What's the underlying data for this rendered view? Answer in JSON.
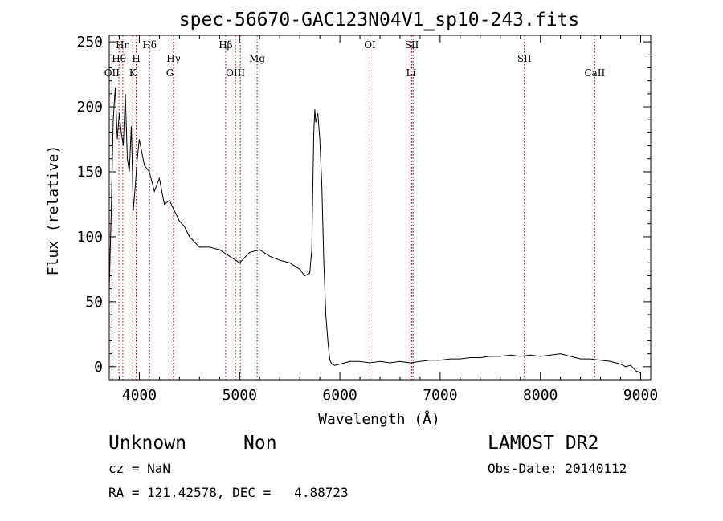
{
  "chart_data": {
    "type": "line",
    "title": "spec-56670-GAC123N04V1_sp10-243.fits",
    "xlabel": "Wavelength (Å)",
    "ylabel": "Flux (relative)",
    "xlim": [
      3700,
      9100
    ],
    "ylim": [
      -10,
      255
    ],
    "xticks": [
      4000,
      5000,
      6000,
      7000,
      8000,
      9000
    ],
    "yticks": [
      0,
      50,
      100,
      150,
      200,
      250
    ],
    "grid": false,
    "line_color": "#000000",
    "marker_color": "#990000",
    "lines": [
      {
        "label": "OII",
        "x": 3727,
        "row": 3
      },
      {
        "label": "Hθ",
        "x": 3797,
        "row": 1
      },
      {
        "label": "Hη",
        "x": 3835,
        "row": 0
      },
      {
        "label": "K",
        "x": 3934,
        "row": 3
      },
      {
        "label": "H",
        "x": 3969,
        "row": 1
      },
      {
        "label": "Hδ",
        "x": 4102,
        "row": 0
      },
      {
        "label": "G",
        "x": 4305,
        "row": 3
      },
      {
        "label": "Hγ",
        "x": 4341,
        "row": 1
      },
      {
        "label": "Hβ",
        "x": 4861,
        "row": 0
      },
      {
        "label": "OIII",
        "x": 4959,
        "row": 3
      },
      {
        "label": "",
        "x": 5007,
        "row": 3
      },
      {
        "label": "Mg",
        "x": 5175,
        "row": 1
      },
      {
        "label": "OI",
        "x": 6300,
        "row": 0
      },
      {
        "label": "Li",
        "x": 6708,
        "row": 3
      },
      {
        "label": "SII",
        "x": 6717,
        "row": 0
      },
      {
        "label": "",
        "x": 6731,
        "row": 0
      },
      {
        "label": "SII",
        "x": 7840,
        "row": 1
      },
      {
        "label": "CaII",
        "x": 8542,
        "row": 3
      }
    ],
    "series": [
      {
        "x": [
          3700,
          3720,
          3740,
          3760,
          3780,
          3800,
          3820,
          3840,
          3860,
          3880,
          3900,
          3920,
          3940,
          3960,
          3980,
          4000,
          4050,
          4100,
          4150,
          4200,
          4250,
          4300,
          4350,
          4400,
          4450,
          4500,
          4600,
          4700,
          4800,
          4900,
          5000,
          5100,
          5200,
          5300,
          5400,
          5500,
          5600,
          5650,
          5700,
          5720,
          5740,
          5750,
          5760,
          5780,
          5800,
          5820,
          5840,
          5860,
          5880,
          5900,
          5920,
          5950,
          6000,
          6100,
          6200,
          6300,
          6400,
          6500,
          6600,
          6700,
          6800,
          6900,
          7000,
          7100,
          7200,
          7300,
          7400,
          7500,
          7600,
          7700,
          7800,
          7900,
          8000,
          8100,
          8200,
          8300,
          8400,
          8500,
          8600,
          8700,
          8800,
          8850,
          8900,
          8950,
          9000
        ],
        "y": [
          60,
          120,
          190,
          215,
          175,
          195,
          180,
          170,
          210,
          160,
          150,
          185,
          120,
          140,
          160,
          175,
          155,
          150,
          135,
          145,
          125,
          128,
          120,
          112,
          108,
          100,
          92,
          92,
          90,
          85,
          80,
          88,
          90,
          85,
          82,
          80,
          75,
          70,
          72,
          90,
          180,
          198,
          188,
          195,
          175,
          140,
          80,
          40,
          20,
          5,
          2,
          1,
          2,
          4,
          4,
          3,
          4,
          3,
          4,
          3,
          4,
          5,
          5,
          6,
          6,
          7,
          7,
          8,
          8,
          9,
          8,
          9,
          8,
          9,
          10,
          8,
          6,
          6,
          5,
          4,
          2,
          0,
          1,
          -3,
          -5
        ]
      }
    ]
  },
  "info": {
    "class_label": "Unknown",
    "subclass_label": "Non",
    "survey": "LAMOST DR2",
    "cz": "cz = NaN",
    "obs_date": "Obs-Date: 20140112",
    "radec": "RA = 121.42578, DEC =   4.88723"
  }
}
